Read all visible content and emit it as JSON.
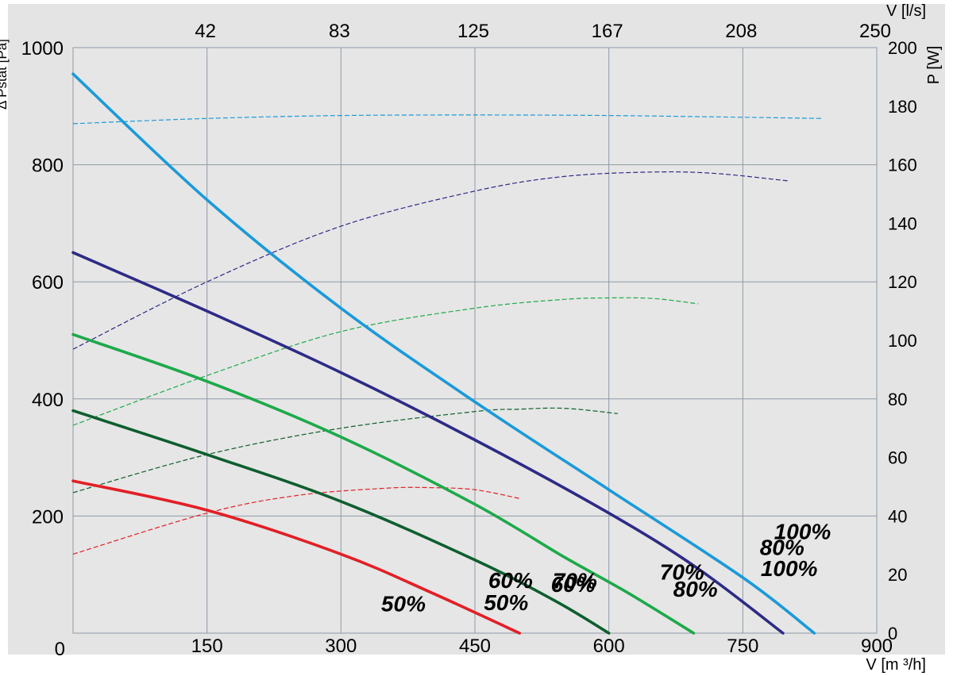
{
  "chart_data": {
    "type": "line",
    "xlabel": "V [m ³/h]",
    "ylabel": "Δ Pstat [Pa]",
    "y2label": "P [W]",
    "x2label": "V [l/s]",
    "xlim": [
      0,
      900
    ],
    "ylim": [
      0,
      1000
    ],
    "y2lim": [
      0,
      200
    ],
    "grid": true,
    "xticks": [
      "150",
      "300",
      "450",
      "600",
      "750",
      "900"
    ],
    "xtick_values": [
      150,
      300,
      450,
      600,
      750,
      900
    ],
    "yticks": [
      "0",
      "200",
      "400",
      "600",
      "800",
      "1000"
    ],
    "ytick_values": [
      0,
      200,
      400,
      600,
      800,
      1000
    ],
    "y2ticks": [
      "0",
      "20",
      "40",
      "60",
      "80",
      "100",
      "120",
      "140",
      "160",
      "180",
      "200"
    ],
    "y2tick_values": [
      0,
      20,
      40,
      60,
      80,
      100,
      120,
      140,
      160,
      180,
      200
    ],
    "x2ticks": [
      "42",
      "83",
      "125",
      "167",
      "208",
      "250"
    ],
    "x2tick_values": [
      150,
      300,
      450,
      600,
      750,
      900
    ],
    "pressure_series": [
      {
        "name": "100%",
        "color": "#1b9ad9",
        "x": [
          0,
          150,
          300,
          450,
          600,
          750,
          830
        ],
        "y": [
          955,
          740,
          555,
          395,
          245,
          95,
          0
        ]
      },
      {
        "name": "80%",
        "color": "#2e2a86",
        "x": [
          0,
          150,
          300,
          450,
          600,
          700,
          795
        ],
        "y": [
          650,
          550,
          445,
          330,
          205,
          110,
          0
        ]
      },
      {
        "name": "70%",
        "color": "#1da94a",
        "x": [
          0,
          150,
          300,
          450,
          550,
          620,
          695
        ],
        "y": [
          510,
          430,
          335,
          220,
          130,
          70,
          0
        ]
      },
      {
        "name": "60%",
        "color": "#0e5e2e",
        "x": [
          0,
          150,
          300,
          450,
          540,
          600
        ],
        "y": [
          380,
          305,
          225,
          125,
          55,
          0
        ]
      },
      {
        "name": "50%",
        "color": "#e21f26",
        "x": [
          0,
          150,
          300,
          400,
          500
        ],
        "y": [
          260,
          210,
          135,
          70,
          0
        ]
      }
    ],
    "power_series": [
      {
        "name": "100%",
        "color": "#1b9ad9",
        "x": [
          0,
          150,
          300,
          450,
          600,
          750,
          840
        ],
        "y": [
          174,
          175.8,
          176.8,
          177,
          176.8,
          176.2,
          175.8
        ]
      },
      {
        "name": "80%",
        "color": "#2e2a86",
        "x": [
          0,
          150,
          300,
          450,
          550,
          650,
          720,
          800
        ],
        "y": [
          97,
          120,
          139,
          151,
          156,
          157.5,
          157,
          154.5
        ]
      },
      {
        "name": "70%",
        "color": "#1da94a",
        "x": [
          0,
          150,
          300,
          450,
          550,
          600,
          650,
          700
        ],
        "y": [
          71,
          88,
          103,
          111,
          114,
          114.5,
          114.3,
          112.5
        ]
      },
      {
        "name": "60%",
        "color": "#0e5e2e",
        "x": [
          0,
          150,
          300,
          450,
          500,
          550,
          610
        ],
        "y": [
          48,
          61,
          70,
          75.7,
          76.5,
          76.8,
          75
        ]
      },
      {
        "name": "50%",
        "color": "#e21f26",
        "x": [
          0,
          150,
          250,
          350,
          400,
          450,
          500
        ],
        "y": [
          27,
          41,
          47,
          49.5,
          49.7,
          49,
          46
        ]
      }
    ],
    "annotations": [
      {
        "text": "100%",
        "x": 770,
        "y": 111
      },
      {
        "text": "80%",
        "x": 672,
        "y": 76
      },
      {
        "text": "70%",
        "x": 537,
        "y": 90
      },
      {
        "text": "60%",
        "x": 465,
        "y": 91
      },
      {
        "text": "50%",
        "x": 345,
        "y": 51
      },
      {
        "text": "100%",
        "x": 785,
        "y": 174
      },
      {
        "text": "80%",
        "x": 769,
        "y": 147
      },
      {
        "text": "70%",
        "x": 657,
        "y": 105
      },
      {
        "text": "60%",
        "x": 535,
        "y": 84
      },
      {
        "text": "50%",
        "x": 460,
        "y": 53
      }
    ]
  }
}
